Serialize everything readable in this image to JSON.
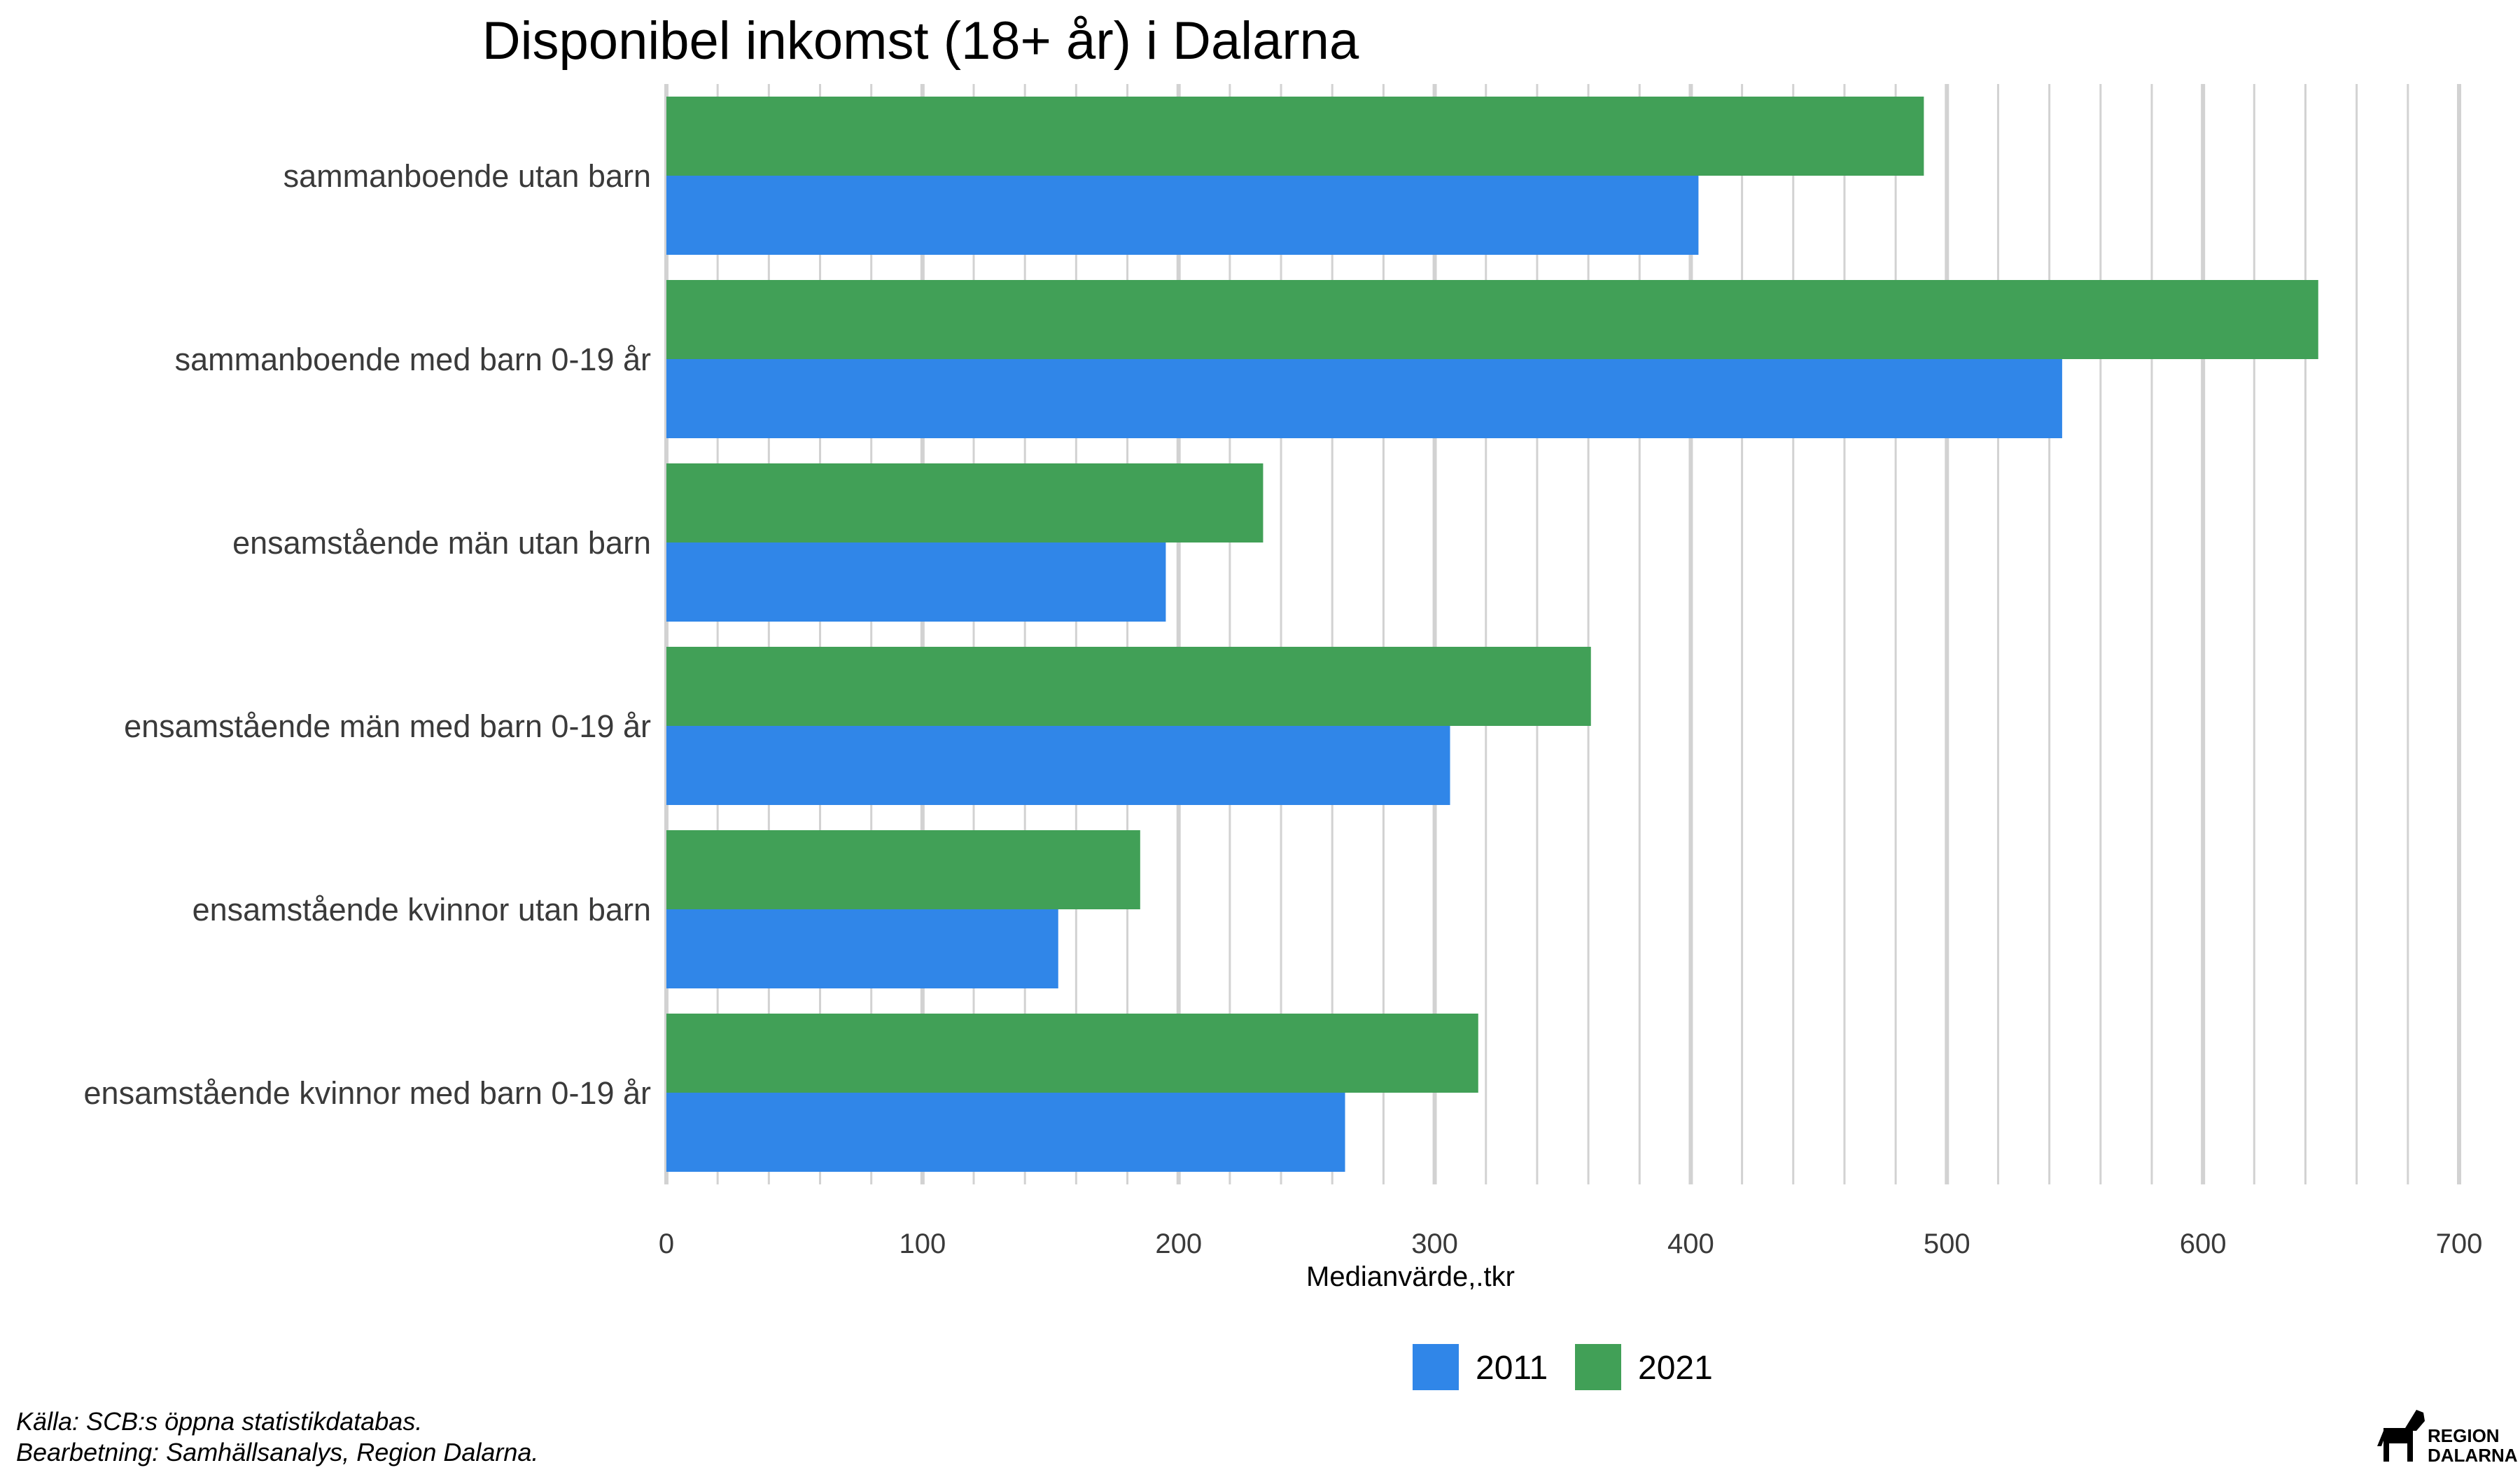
{
  "chart_data": {
    "type": "bar",
    "orientation": "horizontal",
    "title": "Disponibel inkomst (18+ år) i Dalarna",
    "xlabel": "Medianvärde,.tkr",
    "ylabel": "",
    "xlim": [
      0,
      700
    ],
    "x_ticks": [
      0,
      100,
      200,
      300,
      400,
      500,
      600,
      700
    ],
    "grid": true,
    "legend_position": "bottom",
    "categories": [
      "sammanboende utan barn",
      "sammanboende med barn 0-19 år",
      "ensamstående män utan barn",
      "ensamstående män med barn 0-19 år",
      "ensamstående kvinnor utan barn",
      "ensamstående kvinnor med barn 0-19 år"
    ],
    "series": [
      {
        "name": "2011",
        "color": "#3086E8",
        "values": [
          403,
          545,
          195,
          306,
          153,
          265
        ]
      },
      {
        "name": "2021",
        "color": "#41A057",
        "values": [
          491,
          645,
          233,
          361,
          185,
          317
        ]
      }
    ]
  },
  "caption": {
    "source": "Källa: SCB:s öppna statistikdatabas.",
    "processing": "Bearbetning: Samhällsanalys, Region Dalarna."
  },
  "logo": {
    "line1": "REGION",
    "line2": "DALARNA"
  }
}
